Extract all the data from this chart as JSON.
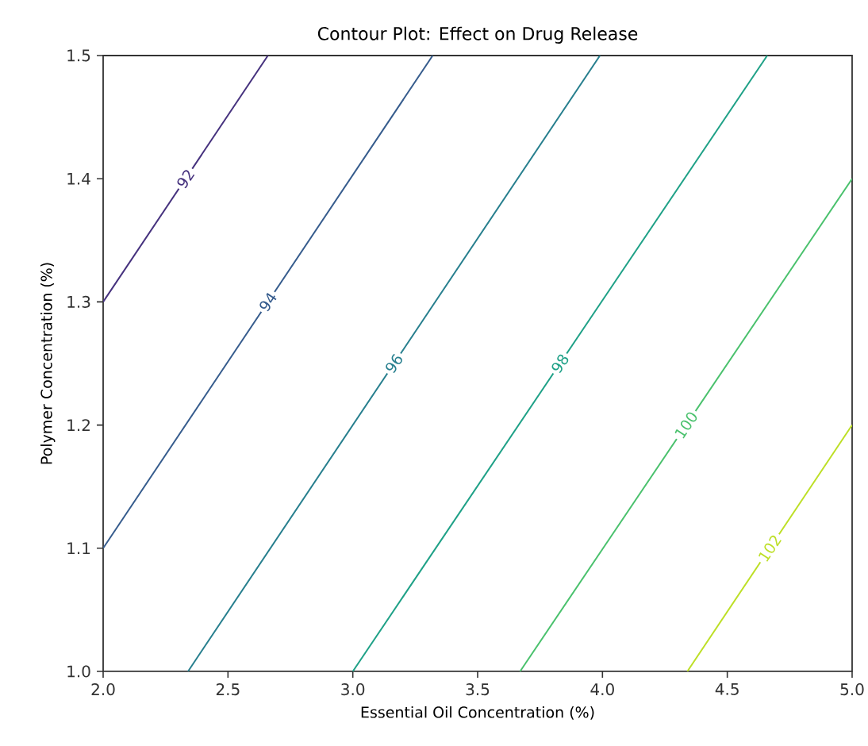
{
  "chart_data": {
    "type": "line",
    "title": "Contour Plot: Effect on Drug Release",
    "xlabel": "Essential Oil Concentration (%)",
    "ylabel": "Polymer Concentration (%)",
    "xlim": [
      2.0,
      5.0
    ],
    "ylim": [
      1.0,
      1.5
    ],
    "xticks": [
      {
        "value": 2.0,
        "label": "2.0"
      },
      {
        "value": 2.5,
        "label": "2.5"
      },
      {
        "value": 3.0,
        "label": "3.0"
      },
      {
        "value": 3.5,
        "label": "3.5"
      },
      {
        "value": 4.0,
        "label": "4.0"
      },
      {
        "value": 4.5,
        "label": "4.5"
      },
      {
        "value": 5.0,
        "label": "5.0"
      }
    ],
    "yticks": [
      {
        "value": 1.0,
        "label": "1.0"
      },
      {
        "value": 1.1,
        "label": "1.1"
      },
      {
        "value": 1.2,
        "label": "1.2"
      },
      {
        "value": 1.3,
        "label": "1.3"
      },
      {
        "value": 1.4,
        "label": "1.4"
      },
      {
        "value": 1.5,
        "label": "1.5"
      }
    ],
    "grid": false,
    "marker": "none",
    "line_style": "solid",
    "series": [
      {
        "name": "92",
        "color": "#46327e",
        "x": [
          2.0,
          2.66
        ],
        "values": [
          1.3,
          1.5
        ]
      },
      {
        "name": "94",
        "color": "#365c8d",
        "x": [
          2.0,
          3.32
        ],
        "values": [
          1.1,
          1.5
        ]
      },
      {
        "name": "96",
        "color": "#277f8e",
        "x": [
          2.34,
          3.99
        ],
        "values": [
          1.0,
          1.5
        ]
      },
      {
        "name": "98",
        "color": "#1fa187",
        "x": [
          3.0,
          4.66
        ],
        "values": [
          1.0,
          1.5
        ]
      },
      {
        "name": "100",
        "color": "#4ac16d",
        "x": [
          3.67,
          5.0
        ],
        "values": [
          1.0,
          1.4
        ]
      },
      {
        "name": "102",
        "color": "#bddf26",
        "x": [
          4.34,
          5.0
        ],
        "values": [
          1.0,
          1.2
        ]
      }
    ]
  }
}
